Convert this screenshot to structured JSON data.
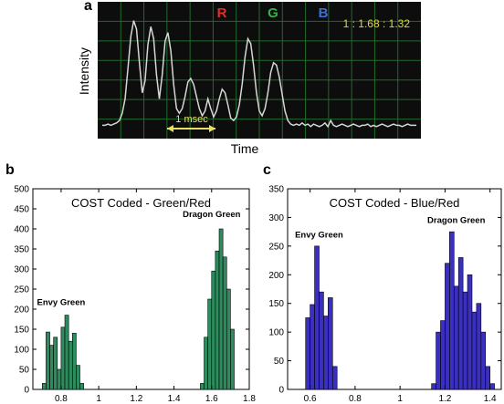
{
  "chart_data": [
    {
      "panel": "a",
      "type": "line",
      "xlabel": "Time",
      "ylabel": "Intensity",
      "grid": true,
      "annotations": {
        "channel_labels": [
          {
            "text": "R",
            "color": "#e0302a"
          },
          {
            "text": "G",
            "color": "#2fb54a"
          },
          {
            "text": "B",
            "color": "#3a6fd6"
          }
        ],
        "ratio": "1 : 1.68 : 1.32",
        "scale_bar": "1 msec"
      },
      "colors": {
        "background": "#0d0d0d",
        "grid": "#1f6b2a",
        "trace": "#d6d6d6",
        "ratio": "#d9d93a",
        "scale_bar": "#e8e060"
      },
      "series": [
        {
          "x": [
            0,
            0.04,
            0.08,
            0.12,
            0.16,
            0.2,
            0.24,
            0.28,
            0.32,
            0.36,
            0.4,
            0.44,
            0.48,
            0.52,
            0.56,
            0.6,
            0.64,
            0.68,
            0.72,
            0.76,
            0.8,
            0.84,
            0.88,
            0.92,
            0.96,
            1.0,
            1.04,
            1.08,
            1.12,
            1.16,
            1.2,
            1.24,
            1.28,
            1.32,
            1.36,
            1.4,
            1.44,
            1.48,
            1.52,
            1.56,
            1.6,
            1.64,
            1.68,
            1.72,
            1.76,
            1.8,
            1.84,
            1.88,
            1.92,
            1.96,
            2.0,
            2.04,
            2.08,
            2.12,
            2.16,
            2.2,
            2.24,
            2.28,
            2.32,
            2.36,
            2.4,
            2.44,
            2.48,
            2.52,
            2.56,
            2.6,
            2.64,
            2.68,
            2.72,
            2.76,
            2.8,
            2.84,
            2.88,
            2.92,
            2.96,
            3.0,
            3.04,
            3.08,
            3.12,
            3.16,
            3.2,
            3.24,
            3.28,
            3.32,
            3.36,
            3.4,
            3.44,
            3.48,
            3.52,
            3.56,
            3.6,
            3.64,
            3.68,
            3.72,
            3.76,
            3.8,
            3.84,
            3.88,
            3.92,
            3.96,
            4.0,
            4.04,
            4.08,
            4.12,
            4.16,
            4.2,
            4.24,
            4.28,
            4.32,
            4.36,
            4.4
          ],
          "y": [
            0.08,
            0.08,
            0.09,
            0.08,
            0.09,
            0.1,
            0.12,
            0.18,
            0.3,
            0.55,
            0.82,
            0.95,
            0.88,
            0.6,
            0.35,
            0.45,
            0.75,
            0.9,
            0.8,
            0.5,
            0.3,
            0.5,
            0.78,
            0.85,
            0.7,
            0.42,
            0.22,
            0.18,
            0.22,
            0.32,
            0.44,
            0.47,
            0.42,
            0.32,
            0.22,
            0.16,
            0.2,
            0.3,
            0.22,
            0.15,
            0.2,
            0.3,
            0.38,
            0.35,
            0.25,
            0.14,
            0.12,
            0.15,
            0.25,
            0.42,
            0.65,
            0.8,
            0.76,
            0.58,
            0.35,
            0.2,
            0.16,
            0.22,
            0.35,
            0.52,
            0.6,
            0.58,
            0.48,
            0.34,
            0.2,
            0.12,
            0.09,
            0.08,
            0.09,
            0.08,
            0.1,
            0.08,
            0.09,
            0.07,
            0.09,
            0.08,
            0.07,
            0.08,
            0.1,
            0.07,
            0.12,
            0.08,
            0.07,
            0.08,
            0.09,
            0.08,
            0.07,
            0.08,
            0.09,
            0.08,
            0.07,
            0.08,
            0.08,
            0.09,
            0.07,
            0.08,
            0.07,
            0.08,
            0.09,
            0.08,
            0.07,
            0.08,
            0.09,
            0.08,
            0.08,
            0.07,
            0.08,
            0.09,
            0.08,
            0.08,
            0.08
          ]
        }
      ]
    },
    {
      "panel": "b",
      "type": "bar",
      "title": "COST Coded - Green/Red",
      "xlim": [
        0.65,
        1.8
      ],
      "ylim": [
        0,
        500
      ],
      "xticks": [
        0.8,
        1,
        1.2,
        1.4,
        1.6,
        1.8
      ],
      "yticks": [
        0,
        50,
        100,
        150,
        200,
        250,
        300,
        350,
        400,
        450,
        500
      ],
      "xtick_labels": [
        "0.8",
        "1",
        "1.2",
        "1.4",
        "1.6",
        "1.8"
      ],
      "ytick_labels": [
        "0",
        "50",
        "100",
        "150",
        "200",
        "250",
        "300",
        "350",
        "400",
        "450",
        "500"
      ],
      "color": "#2e8b5e",
      "bin_width": 0.02,
      "bin_starts": [
        0.7,
        0.72,
        0.74,
        0.76,
        0.78,
        0.8,
        0.82,
        0.84,
        0.86,
        0.88,
        0.9,
        1.54,
        1.56,
        1.58,
        1.6,
        1.62,
        1.64,
        1.66,
        1.68,
        1.7
      ],
      "values": [
        15,
        143,
        110,
        130,
        50,
        155,
        185,
        120,
        140,
        60,
        15,
        15,
        130,
        225,
        295,
        345,
        400,
        330,
        250,
        150
      ],
      "annotations": [
        {
          "text": "Envy Green",
          "x": 0.8,
          "y": 210
        },
        {
          "text": "Dragon Green",
          "x": 1.6,
          "y": 430
        }
      ]
    },
    {
      "panel": "c",
      "type": "bar",
      "title": "COST Coded - Blue/Red",
      "xlim": [
        0.5,
        1.45
      ],
      "ylim": [
        0,
        350
      ],
      "xticks": [
        0.6,
        0.8,
        1,
        1.2,
        1.4
      ],
      "yticks": [
        0,
        50,
        100,
        150,
        200,
        250,
        300,
        350
      ],
      "xtick_labels": [
        "0.6",
        "0.8",
        "1",
        "1.2",
        "1.4"
      ],
      "ytick_labels": [
        "0",
        "50",
        "100",
        "150",
        "200",
        "250",
        "300",
        "350"
      ],
      "color": "#3a2fbf",
      "bin_width": 0.02,
      "bin_starts": [
        0.58,
        0.6,
        0.62,
        0.64,
        0.66,
        0.68,
        0.7,
        1.14,
        1.16,
        1.18,
        1.2,
        1.22,
        1.24,
        1.26,
        1.28,
        1.3,
        1.32,
        1.34,
        1.36,
        1.38,
        1.4
      ],
      "values": [
        125,
        148,
        250,
        170,
        128,
        160,
        40,
        10,
        100,
        120,
        220,
        275,
        180,
        230,
        170,
        200,
        135,
        150,
        100,
        40,
        10
      ],
      "annotations": [
        {
          "text": "Envy Green",
          "x": 0.64,
          "y": 265
        },
        {
          "text": "Dragon Green",
          "x": 1.25,
          "y": 290
        }
      ]
    }
  ],
  "panels": {
    "a": "a",
    "b": "b",
    "c": "c"
  }
}
